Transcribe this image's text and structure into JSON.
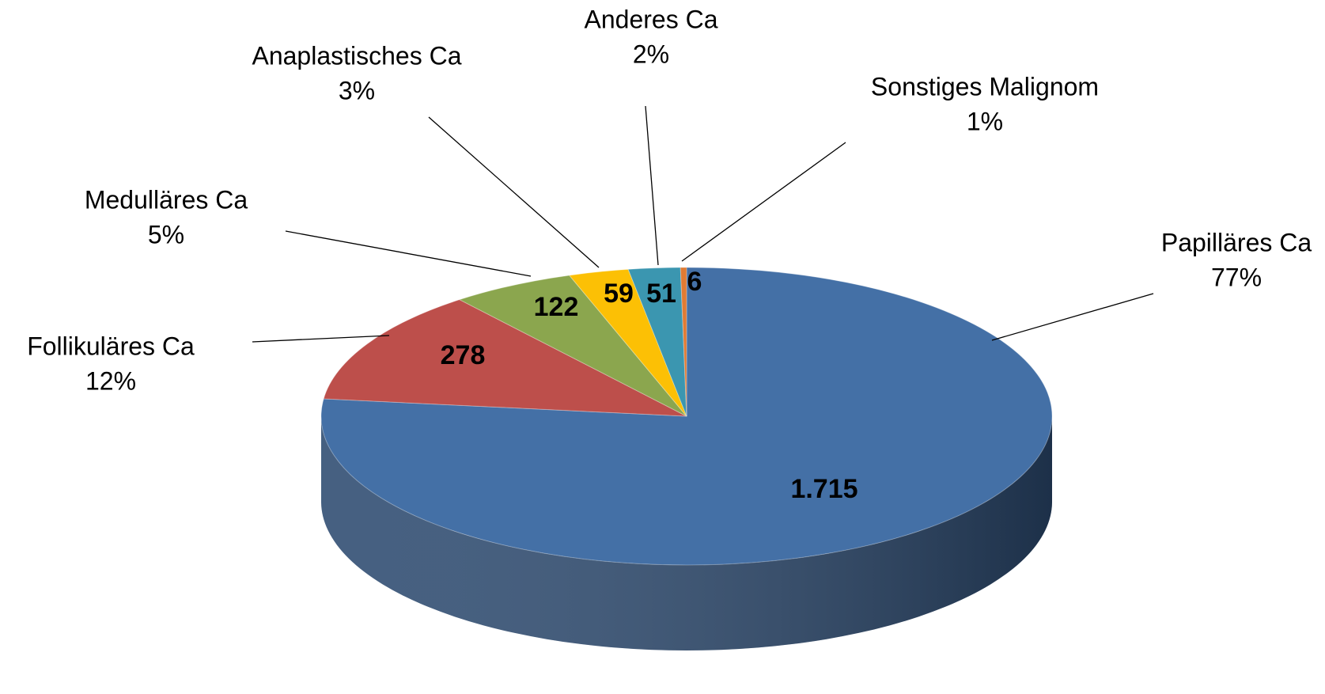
{
  "chart_data": {
    "type": "pie",
    "categories": [
      "Papilläres Ca",
      "Follikuläres Ca",
      "Medulläres Ca",
      "Anaplastisches Ca",
      "Anderes Ca",
      "Sonstiges Malignom"
    ],
    "values": [
      1715,
      278,
      122,
      59,
      51,
      6
    ],
    "value_labels": [
      "1.715",
      "278",
      "122",
      "59",
      "51",
      "6"
    ],
    "percent_labels": [
      "77%",
      "12%",
      "5%",
      "3%",
      "2%",
      "1%"
    ],
    "colors": [
      "#4470a6",
      "#bd4f4b",
      "#8ba64e",
      "#fcc005",
      "#3b96b0",
      "#e07b34"
    ],
    "side_colors": [
      "#2c4a70",
      "#7e3532",
      "#5d6f34",
      "#a88003",
      "#276476",
      "#954f22"
    ]
  }
}
